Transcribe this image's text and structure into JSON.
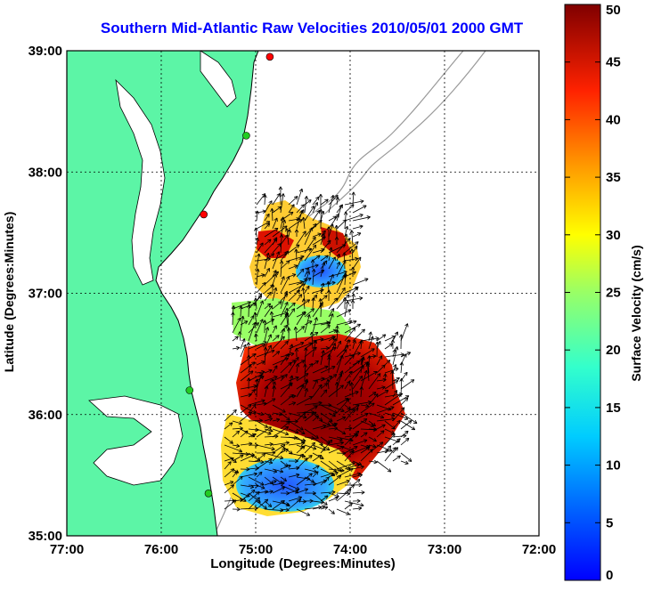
{
  "title": "Southern Mid-Atlantic Raw Velocities 2010/05/01 2000 GMT",
  "xlabel": "Longitude (Degrees:Minutes)",
  "ylabel": "Latitude (Degrees:Minutes)",
  "colorbar_label": "Surface Velocity (cm/s)",
  "colors": {
    "land": "#5cf5a6",
    "title": "#0000ff",
    "coast": "#000000",
    "bathymetry": "#999999",
    "grid": "#000000"
  },
  "chart_data": {
    "type": "heatmap",
    "x_ticks": [
      "77:00",
      "76:00",
      "75:00",
      "74:00",
      "73:00",
      "72:00"
    ],
    "y_ticks": [
      "39:00",
      "38:00",
      "37:00",
      "36:00",
      "35:00"
    ],
    "xlim": [
      -77,
      -72
    ],
    "ylim": [
      35,
      39
    ],
    "colorbar": {
      "min": 0,
      "max": 50,
      "ticks": [
        "0",
        "5",
        "10",
        "15",
        "20",
        "25",
        "30",
        "35",
        "40",
        "45",
        "50"
      ],
      "colormap": "jet"
    },
    "grid": true,
    "velocity_regions": [
      {
        "lon": -75.0,
        "lat": 36.8,
        "speed": 28
      },
      {
        "lon": -74.6,
        "lat": 37.2,
        "speed": 14
      },
      {
        "lon": -74.3,
        "lat": 36.3,
        "speed": 46
      },
      {
        "lon": -74.9,
        "lat": 35.7,
        "speed": 30
      },
      {
        "lon": -74.6,
        "lat": 35.4,
        "speed": 9
      },
      {
        "lon": -75.0,
        "lat": 37.4,
        "speed": 38
      }
    ],
    "station_markers": [
      {
        "lon": -74.85,
        "lat": 38.95,
        "color": "#ff0000"
      },
      {
        "lon": -75.1,
        "lat": 38.3,
        "color": "#22cc22"
      },
      {
        "lon": -75.55,
        "lat": 37.65,
        "color": "#ff0000"
      },
      {
        "lon": -75.7,
        "lat": 36.2,
        "color": "#22cc22"
      },
      {
        "lon": -75.5,
        "lat": 35.35,
        "color": "#22cc22"
      }
    ]
  }
}
